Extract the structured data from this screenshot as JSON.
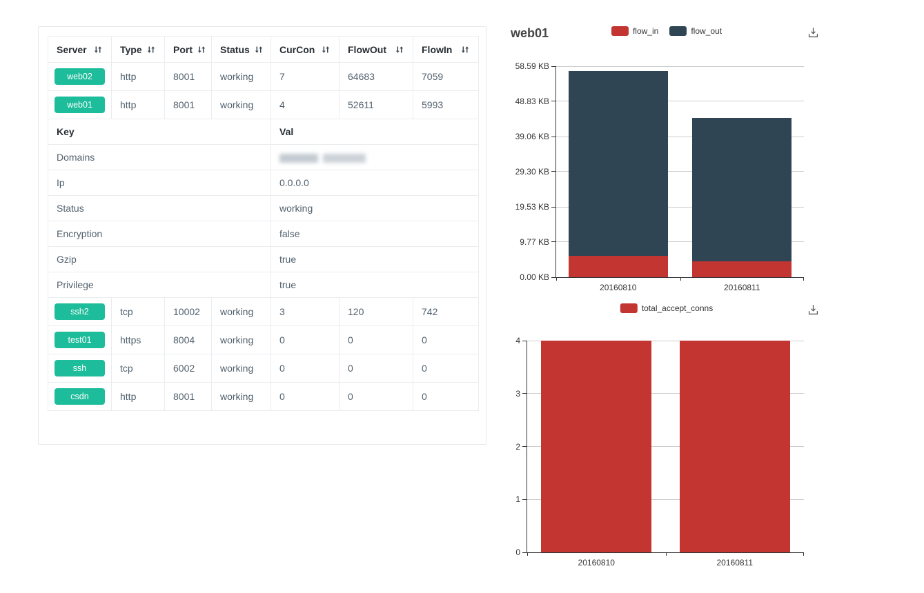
{
  "colors": {
    "badge_green": "#1dbc9a",
    "series_red": "#c23531",
    "series_dark": "#2f4554",
    "axis_line": "#333333",
    "grid_line": "#cccccc",
    "table_border": "#e9edf0"
  },
  "icons": {
    "sort": "sort-arrows-icon",
    "download": "save-as-image-icon"
  },
  "table": {
    "columns": [
      {
        "label": "Server"
      },
      {
        "label": "Type"
      },
      {
        "label": "Port"
      },
      {
        "label": "Status"
      },
      {
        "label": "CurCon"
      },
      {
        "label": "FlowOut"
      },
      {
        "label": "FlowIn"
      }
    ],
    "server_rows_top": [
      {
        "server": "web02",
        "type": "http",
        "port": "8001",
        "status": "working",
        "curcon": "7",
        "flowout": "64683",
        "flowin": "7059"
      },
      {
        "server": "web01",
        "type": "http",
        "port": "8001",
        "status": "working",
        "curcon": "4",
        "flowout": "52611",
        "flowin": "5993"
      }
    ],
    "details": {
      "key_header": "Key",
      "val_header": "Val",
      "rows": [
        {
          "key": "Domains",
          "val": "",
          "redacted": true
        },
        {
          "key": "Ip",
          "val": "0.0.0.0"
        },
        {
          "key": "Status",
          "val": "working"
        },
        {
          "key": "Encryption",
          "val": "false"
        },
        {
          "key": "Gzip",
          "val": "true"
        },
        {
          "key": "Privilege",
          "val": "true"
        }
      ]
    },
    "server_rows_bottom": [
      {
        "server": "ssh2",
        "type": "tcp",
        "port": "10002",
        "status": "working",
        "curcon": "3",
        "flowout": "120",
        "flowin": "742"
      },
      {
        "server": "test01",
        "type": "https",
        "port": "8004",
        "status": "working",
        "curcon": "0",
        "flowout": "0",
        "flowin": "0"
      },
      {
        "server": "ssh",
        "type": "tcp",
        "port": "6002",
        "status": "working",
        "curcon": "0",
        "flowout": "0",
        "flowin": "0"
      },
      {
        "server": "csdn",
        "type": "http",
        "port": "8001",
        "status": "working",
        "curcon": "0",
        "flowout": "0",
        "flowin": "0"
      }
    ]
  },
  "chart_data": [
    {
      "type": "bar",
      "stacked": true,
      "title": "web01",
      "categories": [
        "20160810",
        "20160811"
      ],
      "value_unit": "KB",
      "series": [
        {
          "name": "flow_in",
          "color": "#c23531",
          "values": [
            5.85,
            4.45
          ]
        },
        {
          "name": "flow_out",
          "color": "#2f4554",
          "values": [
            51.38,
            39.83
          ]
        }
      ],
      "ylim": [
        0,
        58.59
      ],
      "yticks": [
        {
          "label": "0.00 KB",
          "value": 0
        },
        {
          "label": "9.77 KB",
          "value": 9.77
        },
        {
          "label": "19.53 KB",
          "value": 19.53
        },
        {
          "label": "29.30 KB",
          "value": 29.3
        },
        {
          "label": "39.06 KB",
          "value": 39.06
        },
        {
          "label": "48.83 KB",
          "value": 48.83
        },
        {
          "label": "58.59 KB",
          "value": 58.59
        }
      ],
      "bar_width_pct": 0.8,
      "grid": true,
      "legend_position": "top-center"
    },
    {
      "type": "bar",
      "stacked": false,
      "title": "",
      "categories": [
        "20160810",
        "20160811"
      ],
      "series": [
        {
          "name": "total_accept_conns",
          "color": "#c23531",
          "values": [
            4,
            4
          ]
        }
      ],
      "ylim": [
        0,
        4
      ],
      "yticks": [
        {
          "label": "0",
          "value": 0
        },
        {
          "label": "1",
          "value": 1
        },
        {
          "label": "2",
          "value": 2
        },
        {
          "label": "3",
          "value": 3
        },
        {
          "label": "4",
          "value": 4
        }
      ],
      "bar_width_pct": 0.8,
      "grid": true,
      "legend_position": "top-center"
    }
  ]
}
